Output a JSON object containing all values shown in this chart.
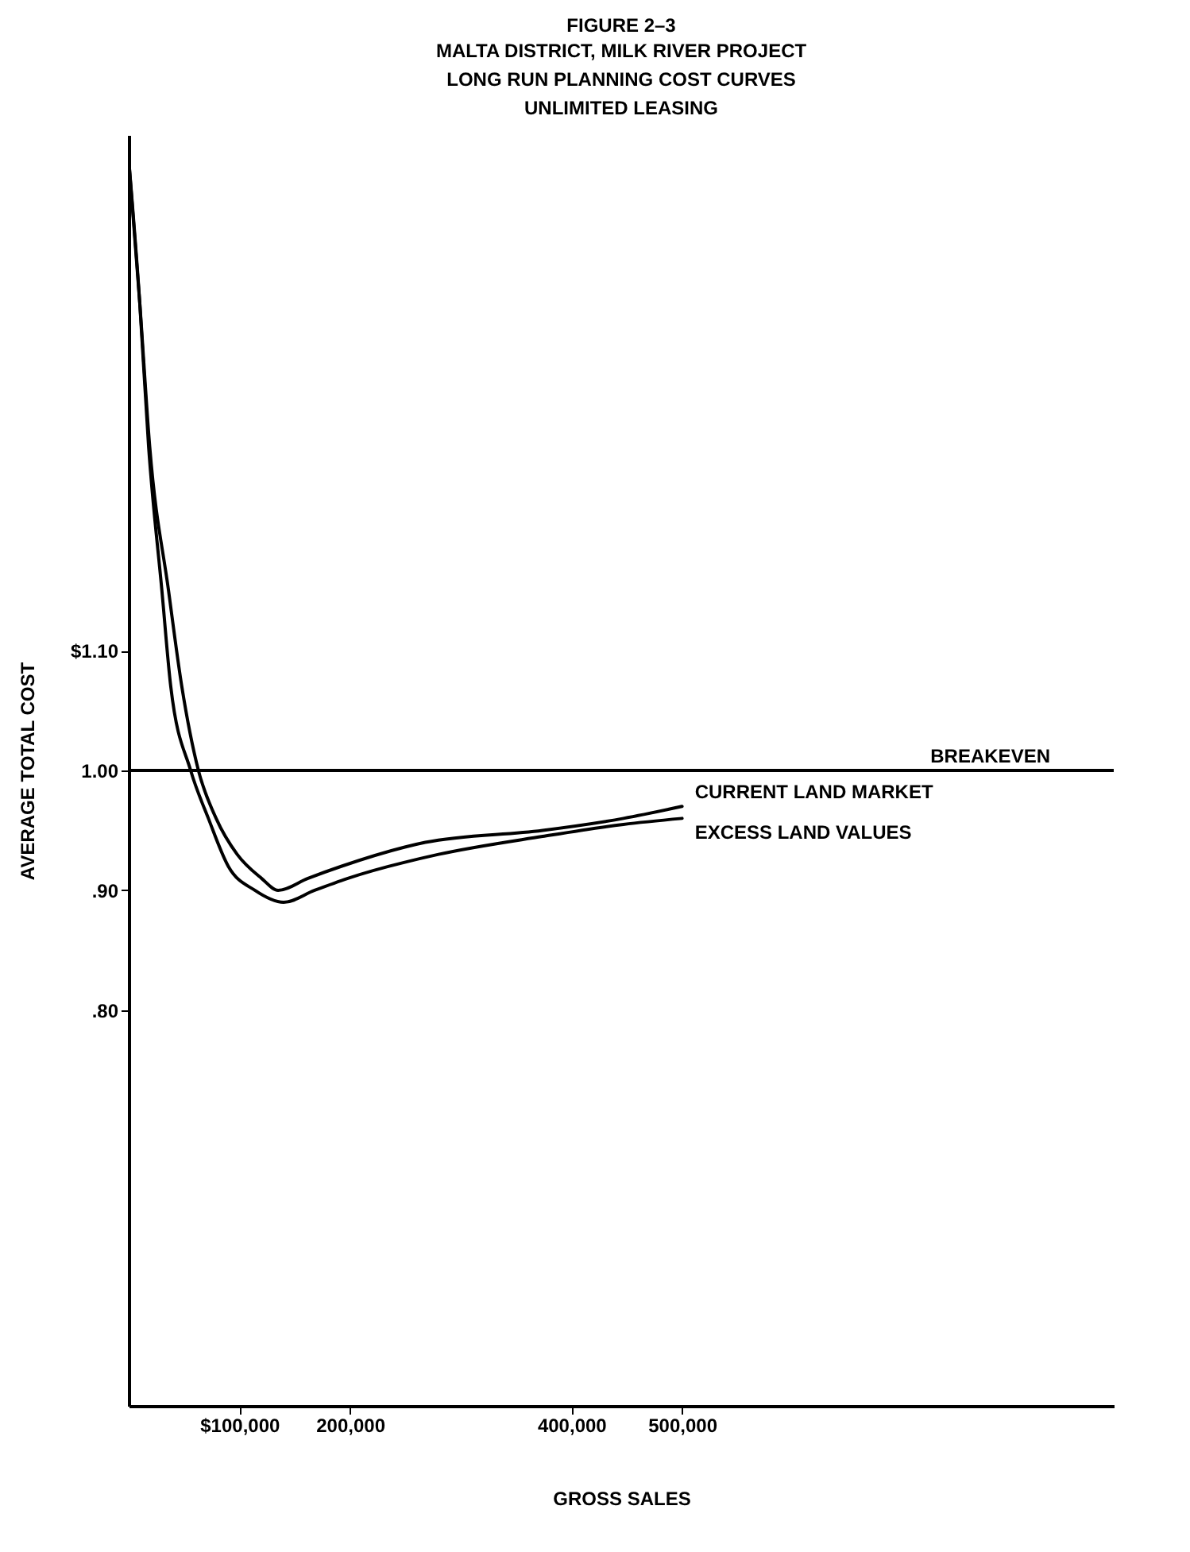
{
  "chart_data": {
    "type": "line",
    "title": "FIGURE 2–3",
    "subtitle": "MALTA DISTRICT, MILK RIVER PROJECT\nLONG RUN PLANNING COST CURVES\nUNLIMITED LEASING",
    "xlabel": "GROSS SALES",
    "ylabel": "AVERAGE TOTAL COST",
    "xlim": [
      0,
      890000
    ],
    "xticks": [
      {
        "value": 100000,
        "label": "$100,000"
      },
      {
        "value": 200000,
        "label": "200,000"
      },
      {
        "value": 400000,
        "label": "400,000"
      },
      {
        "value": 500000,
        "label": "500,000"
      }
    ],
    "ylim": [
      0.47,
      1.53
    ],
    "yticks": [
      {
        "value": 1.1,
        "label": "$1.10"
      },
      {
        "value": 1.0,
        "label": "1.00"
      },
      {
        "value": 0.9,
        "label": ".90"
      },
      {
        "value": 0.8,
        "label": ".80"
      }
    ],
    "grid": false,
    "legend": false,
    "marker": "none",
    "line_style": "solid",
    "ref_lines": [
      {
        "axis": "y",
        "value": 1.0,
        "label": "BREAKEVEN"
      }
    ],
    "series": [
      {
        "name": "CURRENT LAND MARKET",
        "color": "#000000",
        "x": [
          0,
          10000,
          19000,
          36000,
          48000,
          63000,
          79000,
          98000,
          120000,
          135000,
          162000,
          192000,
          268000,
          374000,
          447000,
          500000
        ],
        "values": [
          1.51,
          1.39,
          1.27,
          1.15,
          1.07,
          1.0,
          0.96,
          0.93,
          0.91,
          0.9,
          0.91,
          0.92,
          0.94,
          0.95,
          0.96,
          0.97
        ]
      },
      {
        "name": "EXCESS LAND VALUES",
        "color": "#000000",
        "x": [
          0,
          10000,
          18000,
          30000,
          38000,
          56000,
          72000,
          90000,
          114000,
          140000,
          168000,
          198000,
          280000,
          374000,
          447000,
          500000
        ],
        "values": [
          1.51,
          1.39,
          1.27,
          1.15,
          1.07,
          1.0,
          0.96,
          0.92,
          0.9,
          0.89,
          0.9,
          0.91,
          0.93,
          0.945,
          0.955,
          0.96
        ]
      }
    ]
  }
}
